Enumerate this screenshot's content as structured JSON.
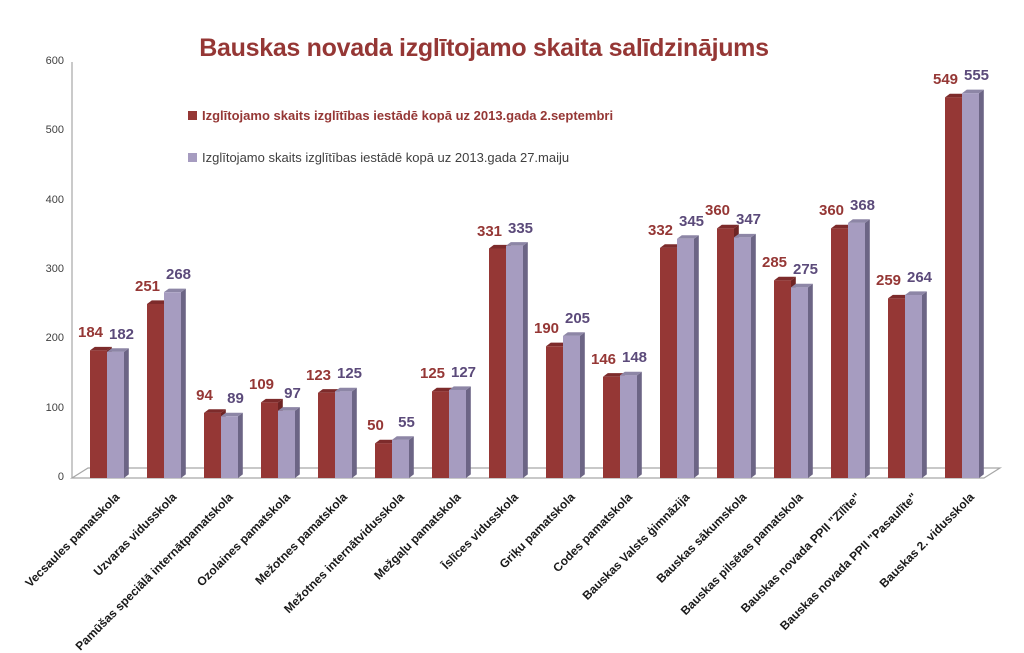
{
  "chart_data": {
    "type": "bar",
    "title": "Bauskas novada izglītojamo skaita salīdzinājums",
    "xlabel": "",
    "ylabel": "",
    "ylim": [
      0,
      600
    ],
    "yticks": [
      0,
      100,
      200,
      300,
      400,
      500,
      600
    ],
    "grid": false,
    "legend_position": "top-left inside plot",
    "categories": [
      "Vecsaules pamatskola",
      "Uzvaras vidusskola",
      "Pamūšas speciālā internātpamatskola",
      "Ozolaines pamatskola",
      "Mežotnes pamatskola",
      "Mežotnes internātvidusskola",
      "Mežgaļu pamatskola",
      "Īslīces vidusskola",
      "Griķu pamatskola",
      "Codes pamatskola",
      "Bauskas Valsts ģimnāzija",
      "Bauskas sākumskola",
      "Bauskas pilsētas pamatskola",
      "Bauskas novada PPII \"Zīlīte\"",
      "Bauskas novada PPII \"Pasaulīte\"",
      "Bauskas 2. vidusskola"
    ],
    "series": [
      {
        "name": "Izglītojamo skaits izglītības iestādē kopā uz 2013.gada 2.septembri",
        "color": "#953735",
        "values": [
          184,
          251,
          94,
          109,
          123,
          50,
          125,
          331,
          190,
          146,
          332,
          360,
          285,
          360,
          259,
          549
        ]
      },
      {
        "name": "Izglītojamo skaits izglītības iestādē kopā uz 2013.gada 27.maiju",
        "color": "#a69cc0",
        "values": [
          182,
          268,
          89,
          97,
          125,
          55,
          127,
          335,
          205,
          148,
          345,
          347,
          275,
          368,
          264,
          555
        ]
      }
    ]
  },
  "colors": {
    "series1_front": "#953735",
    "series1_side": "#6e2424",
    "series1_top": "#7d2b2b",
    "series2_front": "#a69cc0",
    "series2_side": "#6c6585",
    "series2_top": "#8d86a6",
    "axis": "#a6a6a6"
  }
}
